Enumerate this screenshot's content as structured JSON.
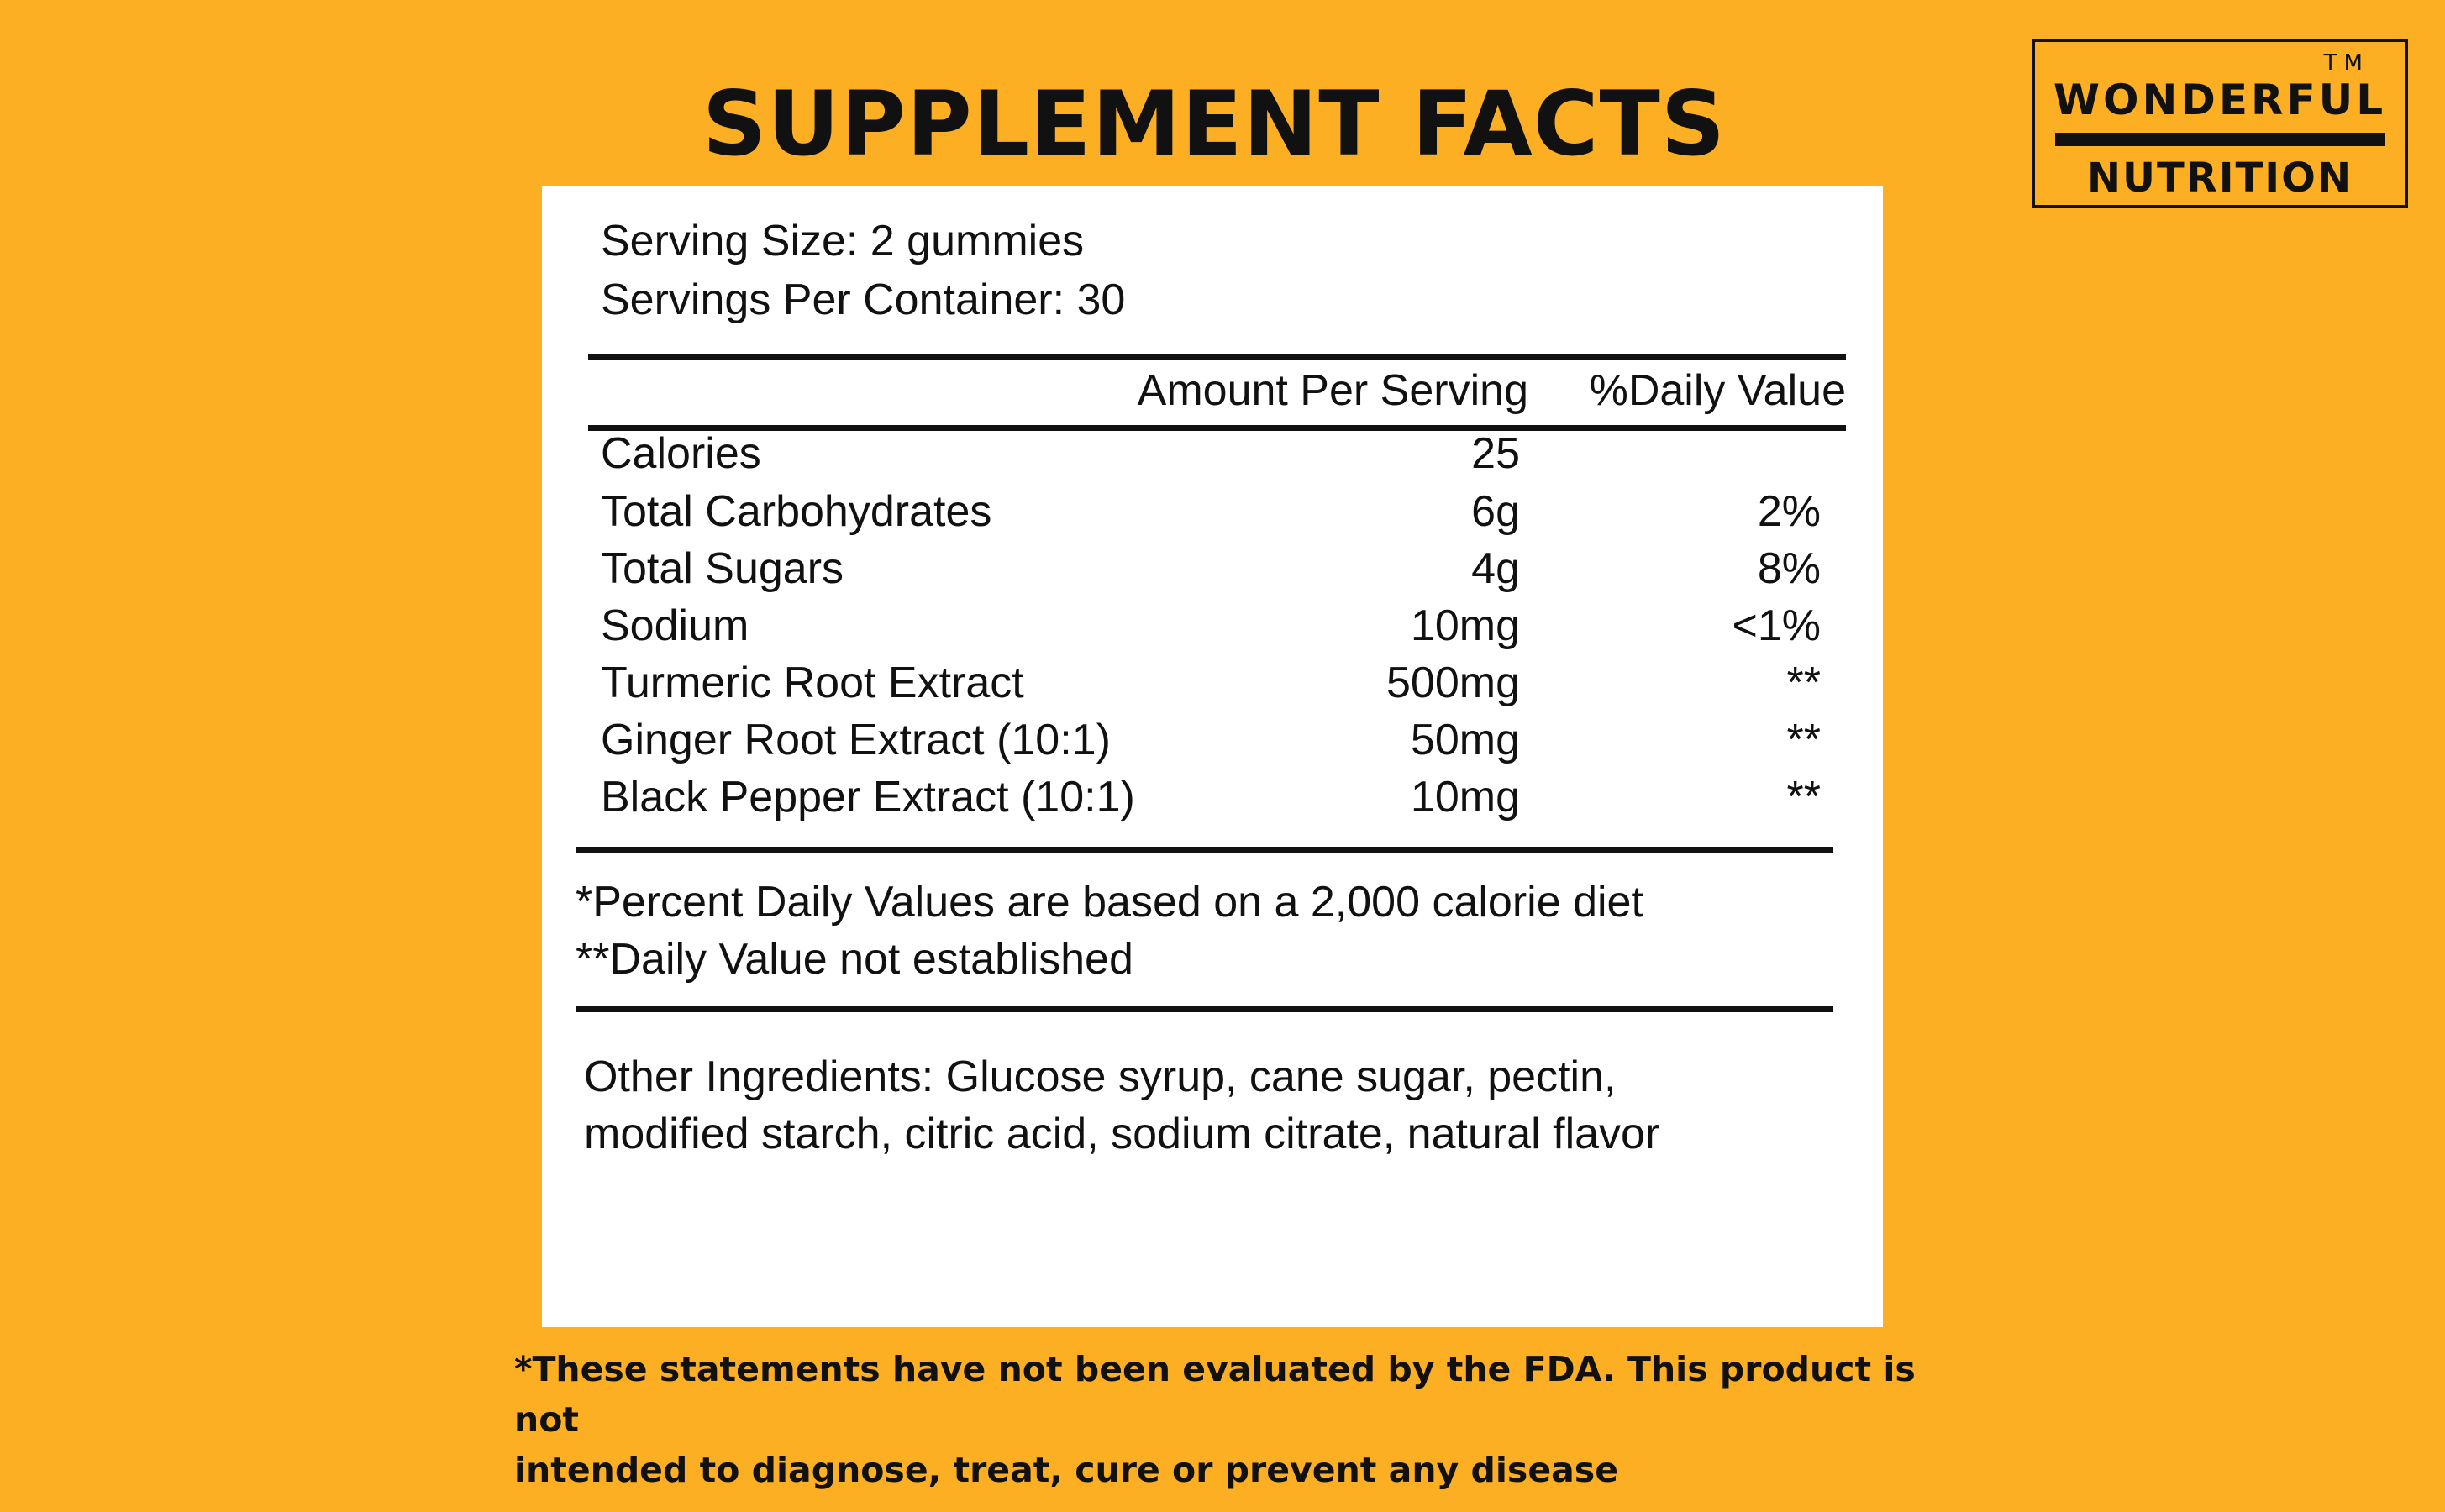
{
  "header": {
    "title": "SUPPLEMENT FACTS"
  },
  "logo": {
    "trademark": "TM",
    "line1": "WONDERFUL",
    "line2": "NUTRITION"
  },
  "facts": {
    "serving_size": "Serving Size: 2 gummies",
    "servings_per_container": "Servings Per Container: 30",
    "columns": {
      "amount": "Amount Per Serving",
      "daily_value": "%Daily Value"
    },
    "rows": [
      {
        "name": "Calories",
        "amount": "25",
        "dv": ""
      },
      {
        "name": "Total Carbohydrates",
        "amount": "6g",
        "dv": "2%"
      },
      {
        "name": "Total Sugars",
        "amount": "4g",
        "dv": "8%"
      },
      {
        "name": "Sodium",
        "amount": "10mg",
        "dv": "<1%"
      },
      {
        "name": "Turmeric Root Extract",
        "amount": "500mg",
        "dv": "**"
      },
      {
        "name": "Ginger Root Extract (10:1)",
        "amount": "50mg",
        "dv": "**"
      },
      {
        "name": "Black Pepper Extract (10:1)",
        "amount": "10mg",
        "dv": "**"
      }
    ],
    "footnote1": "*Percent Daily Values are based on a 2,000 calorie diet",
    "footnote2": "**Daily Value not established",
    "ingredients_line1": "Other Ingredients: Glucose syrup, cane sugar, pectin,",
    "ingredients_line2": "modified starch, citric acid, sodium citrate, natural flavor"
  },
  "disclaimer": {
    "line1": "*These statements have not been evaluated by the FDA. This product is not",
    "line2": "intended to diagnose, treat, cure or prevent any disease"
  },
  "colors": {
    "background": "#FDAF24",
    "panel": "#FFFFFF",
    "text": "#111111"
  }
}
